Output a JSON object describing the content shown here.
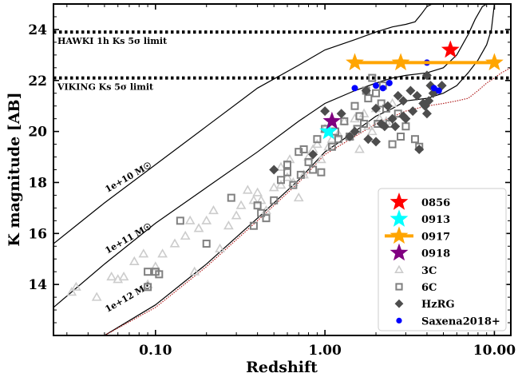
{
  "chart_data": {
    "type": "scatter",
    "xlabel": "Redshift",
    "ylabel": "K magnitude [AB]",
    "xscale": "log",
    "xlim": [
      0.025,
      12.5
    ],
    "ylim": [
      12.0,
      25.0
    ],
    "x_ticks": [
      0.1,
      1.0,
      10.0
    ],
    "x_tick_labels": [
      "0.10",
      "1.00",
      "10.00"
    ],
    "y_ticks": [
      14,
      16,
      18,
      20,
      22,
      24
    ],
    "y_tick_labels": [
      "14",
      "16",
      "18",
      "20",
      "22",
      "24"
    ],
    "limits": [
      {
        "label": "HAWKI 1h Ks 5σ limit",
        "y": 23.9
      },
      {
        "label": "VIKING Ks 5σ limit",
        "y": 22.1
      }
    ],
    "mass_tracks": [
      {
        "label": "1e+10 M☉",
        "x": [
          0.025,
          0.05,
          0.1,
          0.2,
          0.4,
          0.7,
          1.0,
          1.5,
          2.0,
          2.5,
          3.0,
          3.4,
          3.7,
          4.0,
          4.3,
          4.6,
          4.9,
          5.2
        ],
        "y": [
          15.6,
          17.2,
          18.7,
          20.2,
          21.7,
          22.6,
          23.2,
          23.6,
          23.9,
          24.1,
          24.2,
          24.3,
          24.6,
          24.9,
          25.0,
          25.0,
          25.0,
          25.0
        ]
      },
      {
        "label": "1e+11 M☉",
        "x": [
          0.025,
          0.05,
          0.1,
          0.2,
          0.4,
          0.7,
          1.0,
          1.5,
          2.0,
          2.5,
          3.0,
          4.0,
          5.0,
          6.0,
          7.0,
          7.7,
          8.5,
          9.0
        ],
        "y": [
          13.1,
          14.8,
          16.4,
          17.8,
          19.2,
          20.4,
          21.1,
          21.6,
          21.9,
          22.1,
          22.2,
          22.3,
          22.5,
          23.0,
          23.8,
          24.4,
          24.9,
          25.0
        ]
      },
      {
        "label": "1e+12 M☉",
        "x": [
          0.05,
          0.1,
          0.2,
          0.4,
          0.7,
          1.0,
          1.5,
          2.0,
          2.5,
          3.0,
          4.0,
          5.0,
          6.0,
          7.0,
          8.0,
          9.0,
          9.6,
          10.0
        ],
        "y": [
          12.0,
          13.2,
          14.8,
          16.6,
          18.1,
          19.2,
          20.0,
          20.6,
          20.9,
          21.2,
          21.3,
          21.5,
          21.8,
          22.3,
          22.8,
          23.4,
          24.0,
          25.0
        ]
      },
      {
        "label": "",
        "x": [
          0.05,
          0.1,
          0.2,
          0.4,
          0.7,
          1.0,
          1.5,
          2.0,
          3.0,
          4.0,
          5.0,
          6.0,
          7.0,
          8.0,
          9.0,
          10.0,
          11.0,
          12.5
        ],
        "y": [
          12.0,
          13.1,
          14.7,
          16.5,
          18.0,
          19.1,
          19.8,
          20.3,
          20.8,
          21.0,
          21.1,
          21.2,
          21.3,
          21.6,
          21.9,
          22.1,
          22.3,
          22.5
        ]
      }
    ],
    "series": [
      {
        "name": "0856",
        "marker": "star",
        "color": "#ff0000",
        "points": [
          [
            5.5,
            23.2
          ]
        ]
      },
      {
        "name": "0913",
        "marker": "star",
        "color": "#00ffff",
        "points": [
          [
            1.05,
            20.0
          ]
        ]
      },
      {
        "name": "0917",
        "marker": "star-line",
        "color": "#ffa500",
        "points": [
          [
            1.5,
            22.7
          ],
          [
            2.8,
            22.7
          ],
          [
            10.0,
            22.7
          ]
        ]
      },
      {
        "name": "0918",
        "marker": "star",
        "color": "#800080",
        "points": [
          [
            1.1,
            20.4
          ]
        ]
      },
      {
        "name": "3C",
        "marker": "triangle",
        "color": "#cccccc",
        "points": [
          [
            0.032,
            13.7
          ],
          [
            0.034,
            13.9
          ],
          [
            0.045,
            13.5
          ],
          [
            0.055,
            14.3
          ],
          [
            0.06,
            14.2
          ],
          [
            0.065,
            14.3
          ],
          [
            0.075,
            14.9
          ],
          [
            0.085,
            15.2
          ],
          [
            0.09,
            14.0
          ],
          [
            0.1,
            14.7
          ],
          [
            0.11,
            15.2
          ],
          [
            0.13,
            15.6
          ],
          [
            0.15,
            15.9
          ],
          [
            0.16,
            16.5
          ],
          [
            0.17,
            14.5
          ],
          [
            0.18,
            16.2
          ],
          [
            0.2,
            16.5
          ],
          [
            0.22,
            16.9
          ],
          [
            0.24,
            15.4
          ],
          [
            0.27,
            16.3
          ],
          [
            0.3,
            16.7
          ],
          [
            0.32,
            17.1
          ],
          [
            0.35,
            17.7
          ],
          [
            0.38,
            17.3
          ],
          [
            0.4,
            17.6
          ],
          [
            0.42,
            17.3
          ],
          [
            0.45,
            16.9
          ],
          [
            0.5,
            17.8
          ],
          [
            0.55,
            18.6
          ],
          [
            0.6,
            18.2
          ],
          [
            0.65,
            18.0
          ],
          [
            0.7,
            17.4
          ],
          [
            0.75,
            18.3
          ],
          [
            0.8,
            19.0
          ],
          [
            0.85,
            19.3
          ],
          [
            0.9,
            19.5
          ],
          [
            0.95,
            18.9
          ],
          [
            1.0,
            20.1
          ],
          [
            1.05,
            19.4
          ],
          [
            1.1,
            19.7
          ],
          [
            1.2,
            19.9
          ],
          [
            1.3,
            20.4
          ],
          [
            1.4,
            19.8
          ],
          [
            1.5,
            20.5
          ],
          [
            1.6,
            19.3
          ],
          [
            1.7,
            20.7
          ],
          [
            1.8,
            20.2
          ],
          [
            1.9,
            20.0
          ],
          [
            2.0,
            20.9
          ],
          [
            2.1,
            20.5
          ],
          [
            2.3,
            20.4
          ],
          [
            2.5,
            21.1
          ],
          [
            0.62,
            18.9
          ],
          [
            0.55,
            17.9
          ]
        ]
      },
      {
        "name": "6C",
        "marker": "square",
        "color": "#808080",
        "points": [
          [
            0.09,
            14.5
          ],
          [
            0.09,
            13.9
          ],
          [
            0.1,
            14.5
          ],
          [
            0.105,
            14.4
          ],
          [
            0.14,
            16.5
          ],
          [
            0.2,
            15.6
          ],
          [
            0.28,
            17.4
          ],
          [
            0.38,
            16.3
          ],
          [
            0.4,
            17.1
          ],
          [
            0.42,
            16.8
          ],
          [
            0.45,
            16.6
          ],
          [
            0.5,
            17.3
          ],
          [
            0.55,
            18.1
          ],
          [
            0.6,
            18.7
          ],
          [
            0.6,
            18.4
          ],
          [
            0.65,
            17.9
          ],
          [
            0.7,
            19.2
          ],
          [
            0.72,
            18.3
          ],
          [
            0.75,
            19.3
          ],
          [
            0.8,
            18.8
          ],
          [
            0.85,
            18.5
          ],
          [
            0.9,
            19.7
          ],
          [
            0.95,
            18.4
          ],
          [
            1.0,
            20.1
          ],
          [
            1.1,
            19.4
          ],
          [
            1.15,
            20.0
          ],
          [
            1.2,
            19.7
          ],
          [
            1.3,
            20.4
          ],
          [
            1.4,
            19.8
          ],
          [
            1.5,
            21.0
          ],
          [
            1.55,
            20.1
          ],
          [
            1.6,
            20.6
          ],
          [
            1.7,
            20.3
          ],
          [
            1.75,
            21.6
          ],
          [
            1.8,
            21.3
          ],
          [
            1.9,
            22.1
          ],
          [
            2.0,
            21.5
          ],
          [
            2.05,
            20.3
          ],
          [
            2.15,
            21.1
          ],
          [
            2.2,
            21.8
          ],
          [
            2.3,
            20.9
          ],
          [
            2.4,
            20.3
          ],
          [
            2.5,
            19.5
          ],
          [
            2.7,
            20.7
          ],
          [
            2.8,
            19.8
          ],
          [
            3.0,
            20.2
          ],
          [
            3.4,
            19.7
          ],
          [
            3.6,
            19.4
          ]
        ]
      },
      {
        "name": "HzRG",
        "marker": "diamond",
        "color": "#4d4d4d",
        "points": [
          [
            0.5,
            18.5
          ],
          [
            0.85,
            19.1
          ],
          [
            1.0,
            20.8
          ],
          [
            1.25,
            20.7
          ],
          [
            1.4,
            19.8
          ],
          [
            1.5,
            20.0
          ],
          [
            1.75,
            21.6
          ],
          [
            2.0,
            20.9
          ],
          [
            2.0,
            19.6
          ],
          [
            2.15,
            20.3
          ],
          [
            2.25,
            20.2
          ],
          [
            2.35,
            21.0
          ],
          [
            2.5,
            20.5
          ],
          [
            2.6,
            20.2
          ],
          [
            2.7,
            21.4
          ],
          [
            2.9,
            21.2
          ],
          [
            2.9,
            20.6
          ],
          [
            3.0,
            20.5
          ],
          [
            3.2,
            21.6
          ],
          [
            3.3,
            20.8
          ],
          [
            3.5,
            21.4
          ],
          [
            3.6,
            19.3
          ],
          [
            3.8,
            21.1
          ],
          [
            3.9,
            21.0
          ],
          [
            4.0,
            22.2
          ],
          [
            4.1,
            21.2
          ],
          [
            4.2,
            21.8
          ],
          [
            4.35,
            21.5
          ],
          [
            4.5,
            21.6
          ],
          [
            4.9,
            21.8
          ],
          [
            4.0,
            20.7
          ],
          [
            1.8,
            19.7
          ]
        ]
      },
      {
        "name": "Saxena2018+",
        "marker": "circle",
        "color": "#0000ff",
        "points": [
          [
            1.5,
            21.7
          ],
          [
            2.0,
            21.8
          ],
          [
            2.2,
            21.7
          ],
          [
            2.4,
            21.9
          ],
          [
            4.0,
            22.7
          ],
          [
            4.4,
            21.7
          ],
          [
            4.7,
            21.6
          ]
        ]
      }
    ],
    "legend": {
      "placement": "bottom-right",
      "entries": [
        "0856",
        "0913",
        "0917",
        "0918",
        "3C",
        "6C",
        "HzRG",
        "Saxena2018+"
      ]
    },
    "grid": false
  }
}
